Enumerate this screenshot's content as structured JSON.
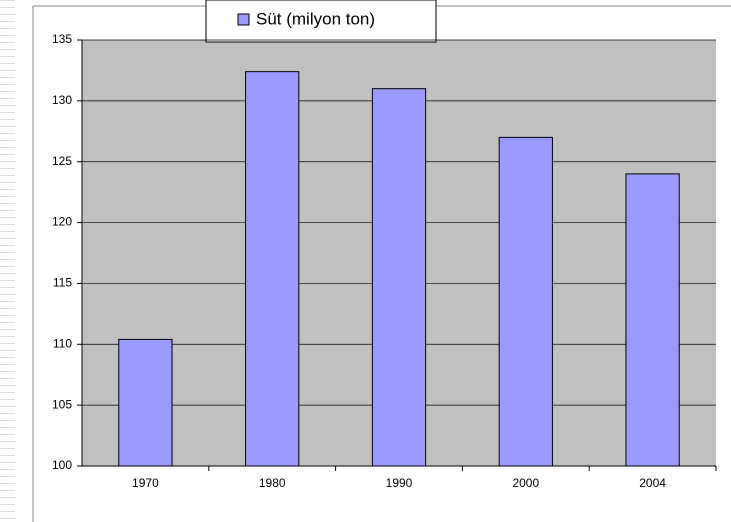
{
  "chart_data": {
    "type": "bar",
    "categories": [
      "1970",
      "1980",
      "1990",
      "2000",
      "2004"
    ],
    "series": [
      {
        "name": "Süt (milyon ton)",
        "color": "#9999ff",
        "values": [
          110.4,
          132.4,
          131,
          127,
          124
        ]
      }
    ],
    "ylim": [
      100,
      135
    ],
    "yticks": [
      100,
      105,
      110,
      115,
      120,
      125,
      130,
      135
    ],
    "grid": true,
    "legend": "top"
  }
}
